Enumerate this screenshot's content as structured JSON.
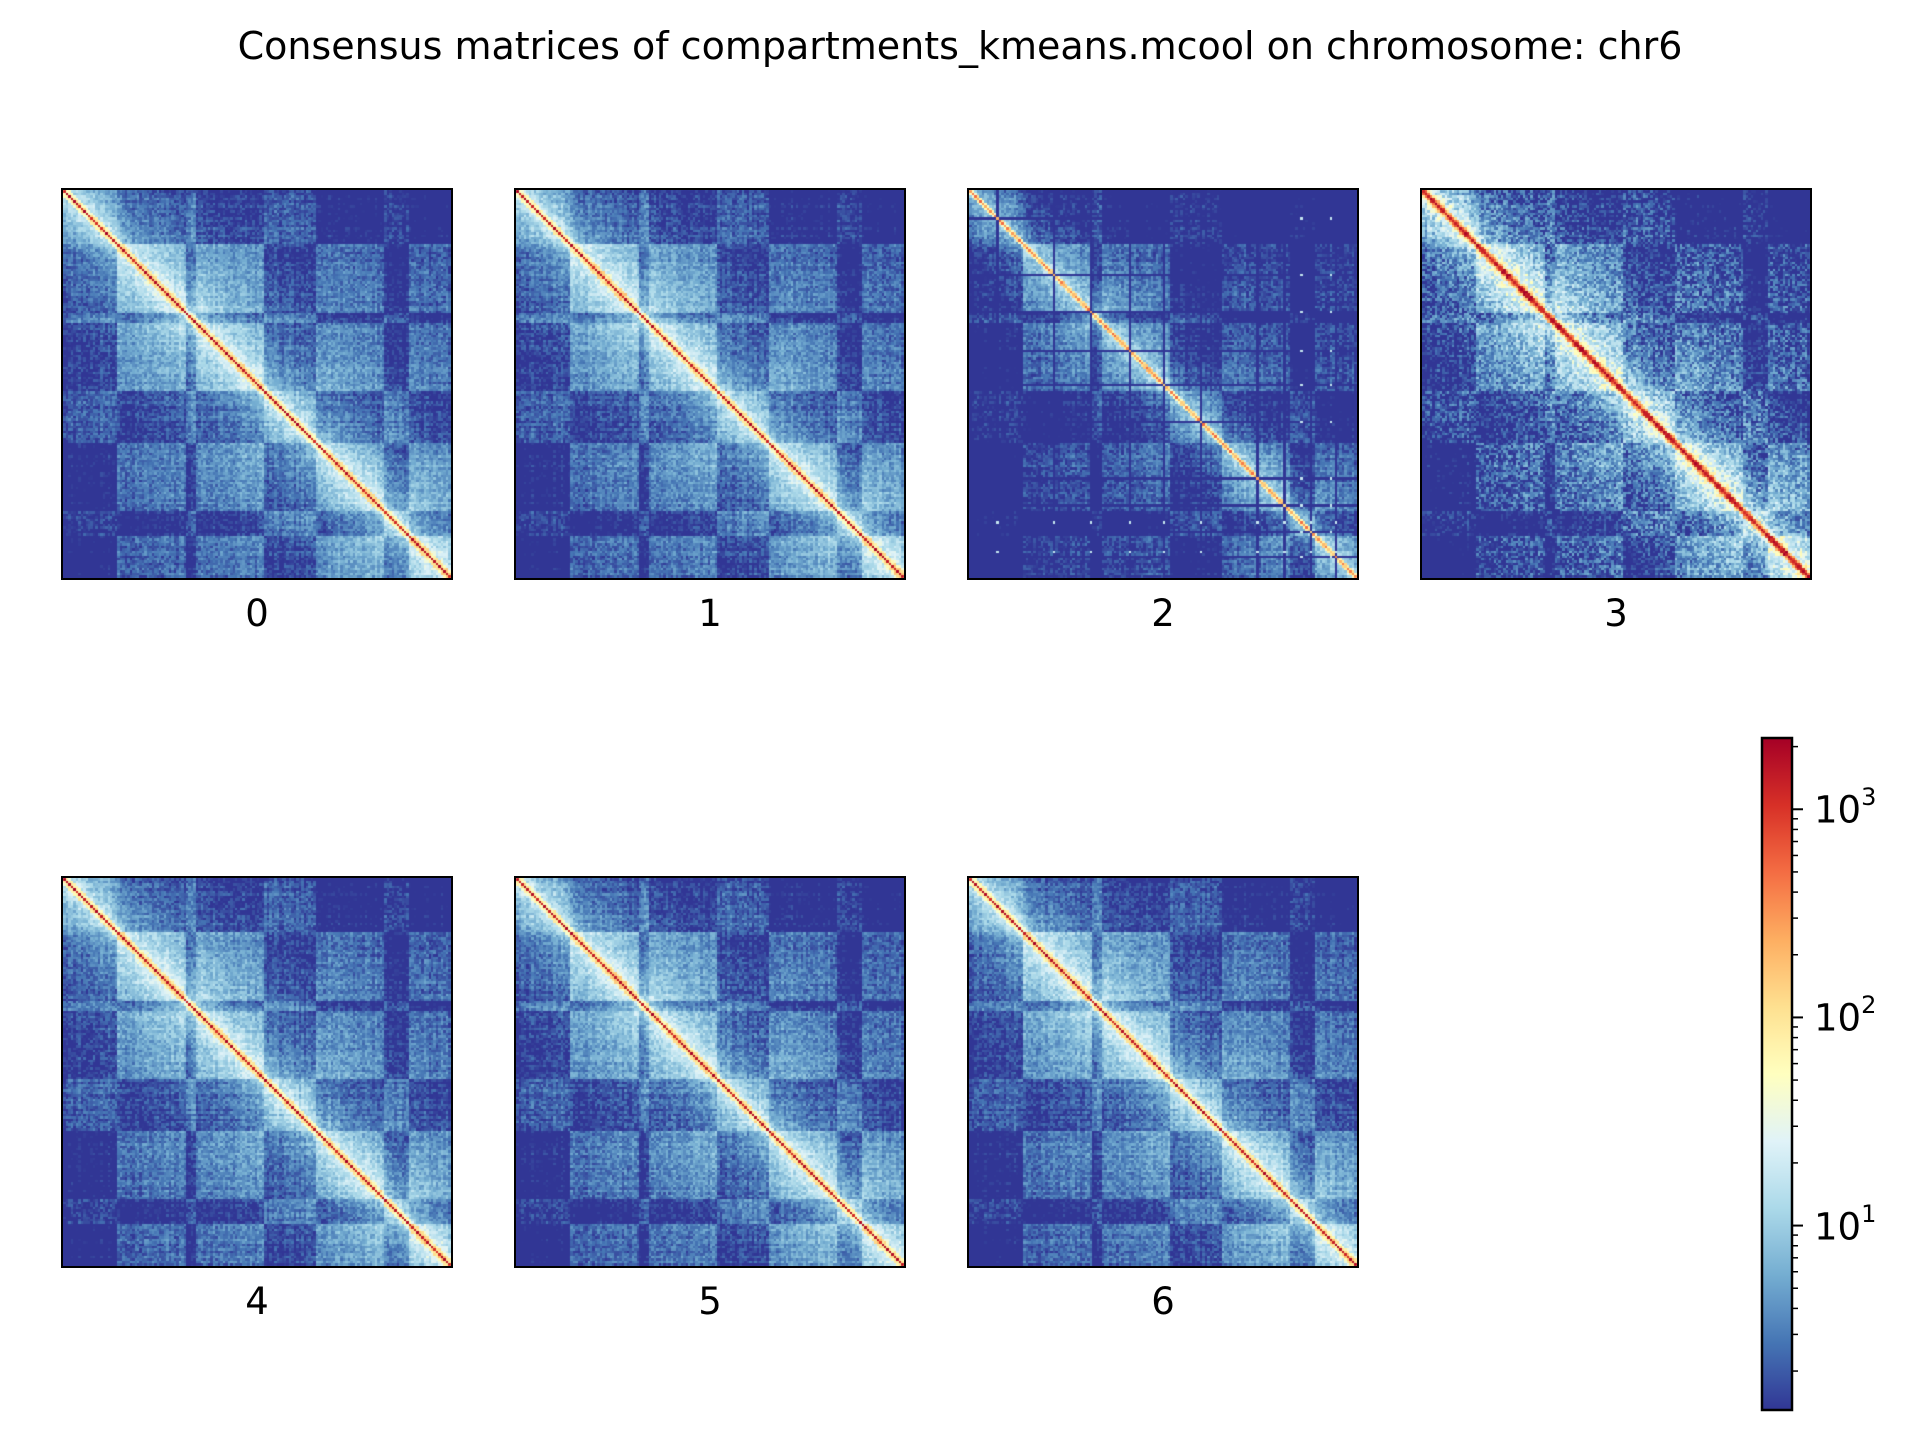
{
  "figure": {
    "title": "Consensus matrices of compartments_kmeans.mcool on chromosome: chr6"
  },
  "chart_data": {
    "type": "heatmap",
    "title": "Consensus matrices of compartments_kmeans.mcool on chromosome: chr6",
    "panels": [
      {
        "label": "0",
        "style": "standard"
      },
      {
        "label": "1",
        "style": "standard"
      },
      {
        "label": "2",
        "style": "gridded"
      },
      {
        "label": "3",
        "style": "saturated"
      },
      {
        "label": "4",
        "style": "standard"
      },
      {
        "label": "5",
        "style": "standard"
      },
      {
        "label": "6",
        "style": "standard"
      }
    ],
    "colorbar": {
      "scale": "log",
      "colormap": "RdYlBu_r",
      "range": [
        1.3,
        2200
      ],
      "ticks": [
        {
          "value": 1000,
          "base": "10",
          "exp": "3"
        },
        {
          "value": 100,
          "base": "10",
          "exp": "2"
        },
        {
          "value": 10,
          "base": "10",
          "exp": "1"
        }
      ]
    },
    "colors": {
      "low": "#313695",
      "mid": "#ffffbf",
      "high": "#a50026"
    }
  }
}
